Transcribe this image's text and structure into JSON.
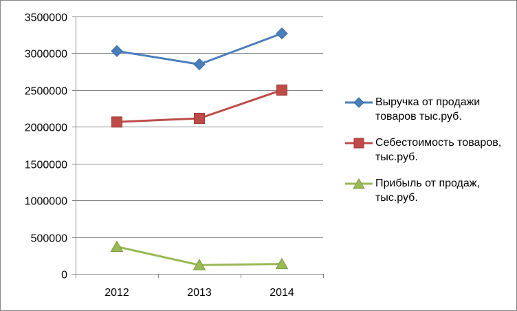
{
  "chart_data": {
    "type": "line",
    "categories": [
      "2012",
      "2013",
      "2014"
    ],
    "ylim": [
      0,
      3500000
    ],
    "yticks": [
      0,
      500000,
      1000000,
      1500000,
      2000000,
      2500000,
      3000000,
      3500000
    ],
    "grid": "horizontal",
    "legend_position": "right",
    "series": [
      {
        "name": "Выручка от продажи товаров тыс.руб.",
        "values": [
          3030000,
          2850000,
          3270000
        ],
        "color": "#4A7EBB",
        "marker": "diamond"
      },
      {
        "name": "Себестоимость товаров, тыс.руб.",
        "values": [
          2065000,
          2115000,
          2500000
        ],
        "color": "#BE4B48",
        "marker": "square"
      },
      {
        "name": "Прибыль от продаж, тыс.руб.",
        "values": [
          370000,
          120000,
          135000
        ],
        "color": "#98B954",
        "marker": "triangle"
      }
    ]
  }
}
